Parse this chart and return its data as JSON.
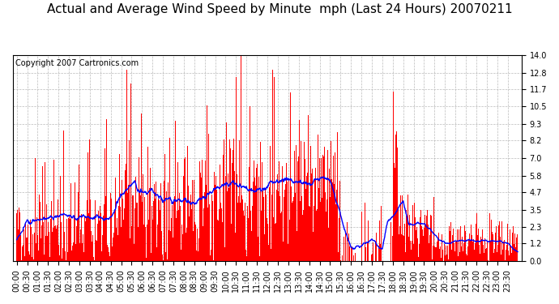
{
  "title": "Actual and Average Wind Speed by Minute  mph (Last 24 Hours) 20070211",
  "copyright": "Copyright 2007 Cartronics.com",
  "yticks": [
    0.0,
    1.2,
    2.3,
    3.5,
    4.7,
    5.8,
    7.0,
    8.2,
    9.3,
    10.5,
    11.7,
    12.8,
    14.0
  ],
  "ymax": 14.0,
  "ymin": 0.0,
  "bar_color": "#FF0000",
  "line_color": "#0000FF",
  "background_color": "#FFFFFF",
  "grid_color": "#AAAAAA",
  "title_fontsize": 11,
  "copyright_fontsize": 7,
  "tick_fontsize": 7
}
